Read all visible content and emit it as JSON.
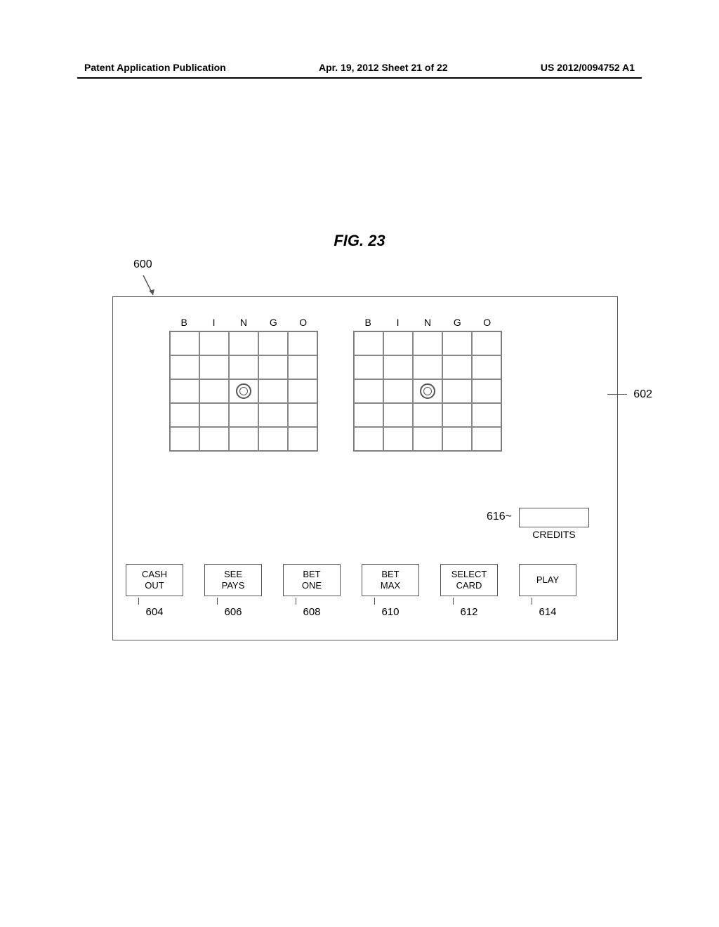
{
  "header": {
    "left": "Patent Application Publication",
    "center": "Apr. 19, 2012  Sheet 21 of 22",
    "right": "US 2012/0094752 A1"
  },
  "figure": {
    "title": "FIG. 23",
    "refs": {
      "screen": "600",
      "card": "602",
      "credits_box": "616",
      "buttons": [
        "604",
        "606",
        "608",
        "610",
        "612",
        "614"
      ]
    },
    "bingo_headers": [
      "B",
      "I",
      "N",
      "G",
      "O"
    ],
    "grid": {
      "rows": 5,
      "cols": 5,
      "free_row": 2,
      "free_col": 2
    },
    "credits_label": "CREDITS",
    "buttons": [
      "CASH\nOUT",
      "SEE\nPAYS",
      "BET\nONE",
      "BET\nMAX",
      "SELECT\nCARD",
      "PLAY"
    ],
    "colors": {
      "line": "#555555",
      "text": "#000000",
      "background": "#ffffff"
    },
    "fonts": {
      "header_size_pt": 11,
      "title_size_pt": 16,
      "label_size_pt": 11,
      "ref_size_pt": 12
    }
  }
}
